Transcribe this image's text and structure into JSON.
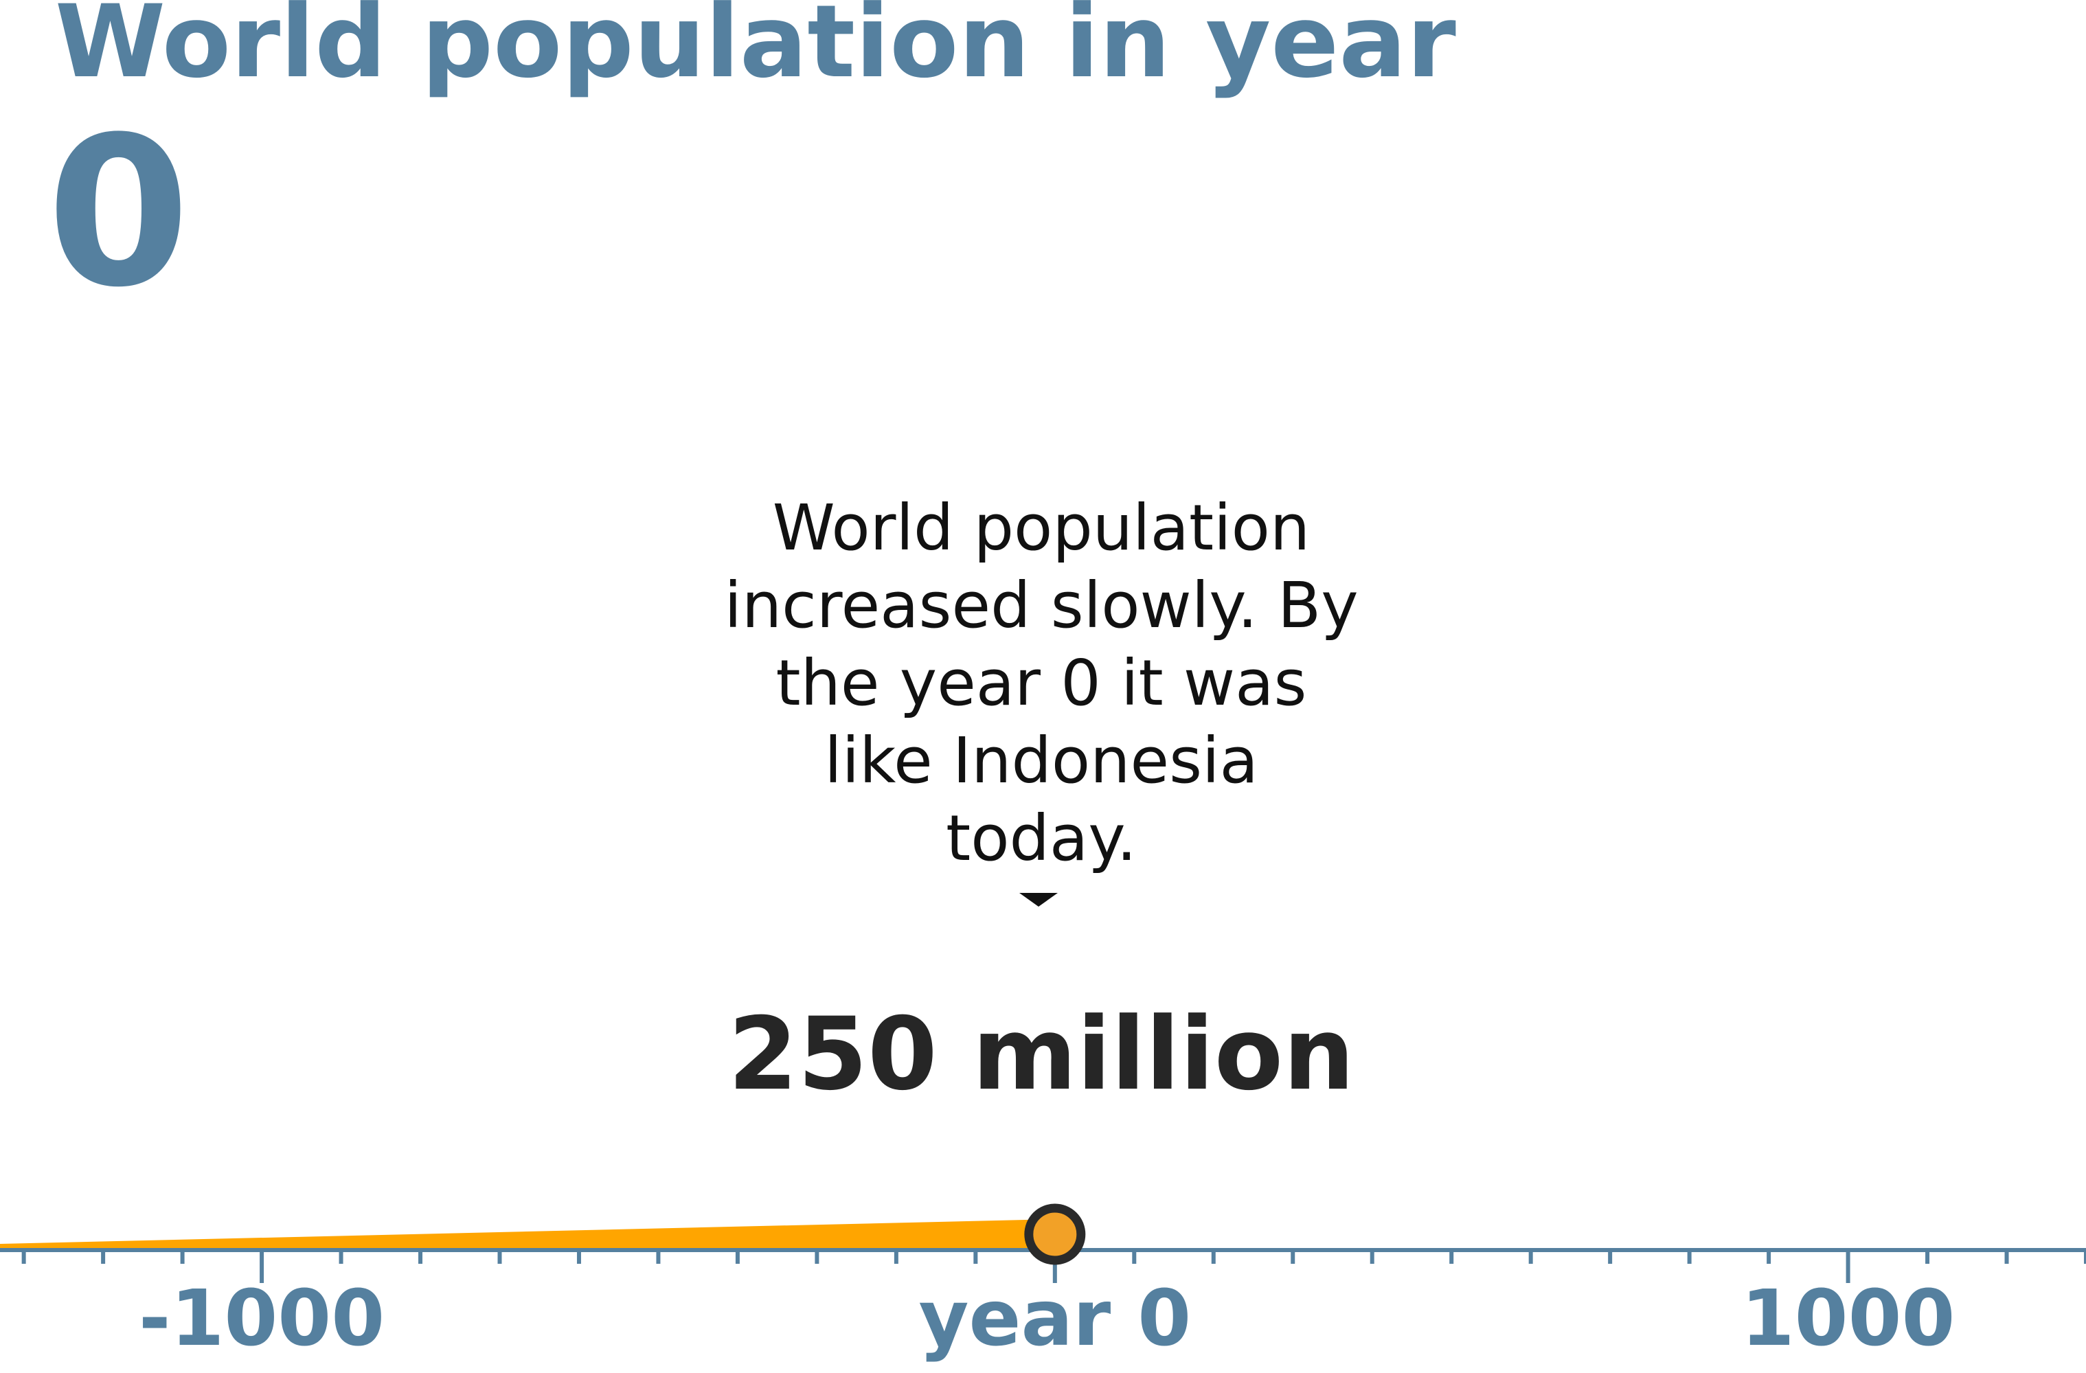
{
  "header": {
    "title": "World population in year",
    "year": "0"
  },
  "annotation": {
    "lines": [
      "World population",
      "increased slowly. By",
      "the year 0 it was",
      "like Indonesia",
      "today."
    ]
  },
  "current_value_label": "250 million",
  "colors": {
    "heading": "#55809f",
    "axis": "#55809f",
    "line": "#ffa500",
    "marker_fill": "#f2a127",
    "marker_stroke": "#2a2a2a",
    "text": "#111111"
  },
  "chart_data": {
    "type": "line",
    "title": "World population in year",
    "xlabel": "",
    "ylabel": "",
    "xlim": [
      -1330,
      1300
    ],
    "x_ticks": [
      {
        "value": -1000,
        "label": "-1000"
      },
      {
        "value": 0,
        "label": "year 0"
      },
      {
        "value": 1000,
        "label": "1000"
      }
    ],
    "minor_tick_step": 100,
    "series": [
      {
        "x": [
          -1330,
          0
        ],
        "y": [
          50,
          250
        ],
        "unit": "million"
      }
    ],
    "highlight": {
      "x": 0,
      "y": 250,
      "label": "250 million"
    },
    "grid": false,
    "legend": "none"
  }
}
